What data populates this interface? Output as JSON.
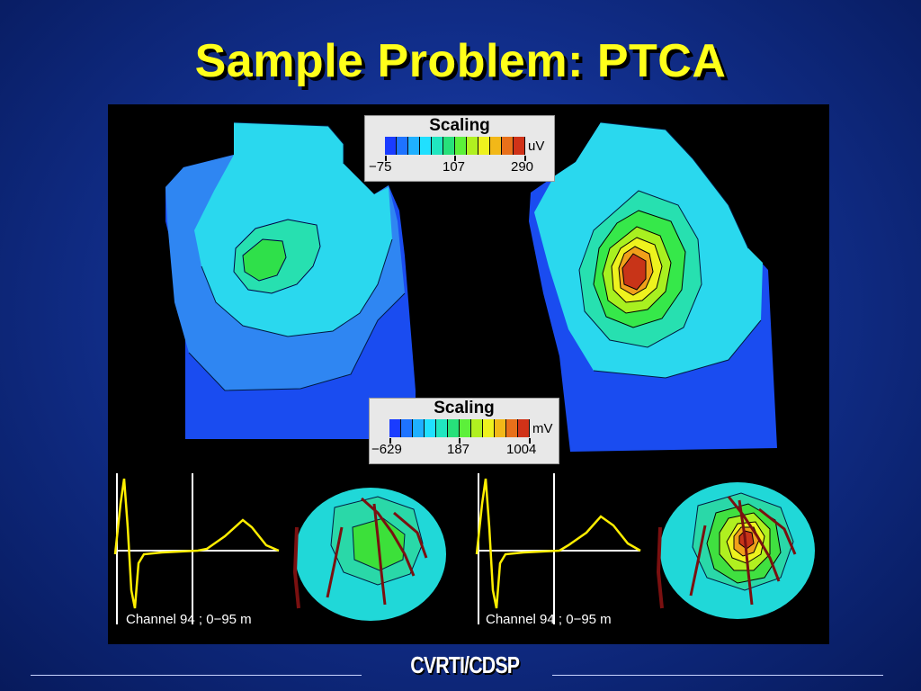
{
  "slide": {
    "title": "Sample Problem: PTCA",
    "logo": "CVRTI/CDSP"
  },
  "colors": {
    "background": "#12308f",
    "title": "#ffff1a",
    "panel": "#000000"
  },
  "scale_top": {
    "title": "Scaling",
    "unit": "uV",
    "min_label": "−75",
    "mid_label": "107",
    "max_label": "290",
    "colors": [
      "#1a3cff",
      "#1e73ff",
      "#1fb0ff",
      "#20e0ff",
      "#20e6c0",
      "#27e07a",
      "#5cf03a",
      "#b0f020",
      "#eef21e",
      "#f2b818",
      "#e8701a",
      "#d03218"
    ]
  },
  "scale_bottom": {
    "title": "Scaling",
    "unit": "mV",
    "min_label": "−629",
    "mid_label": "187",
    "max_label": "1004",
    "colors": [
      "#1a3cff",
      "#1e73ff",
      "#1fb0ff",
      "#20e0ff",
      "#20e6c0",
      "#27e07a",
      "#5cf03a",
      "#b0f020",
      "#eef21e",
      "#f2b818",
      "#e8701a",
      "#d03218"
    ]
  },
  "channel_left": {
    "label": "Channel  94 ; 0−95 m"
  },
  "channel_right": {
    "label": "Channel  94 ; 0−95 m"
  }
}
